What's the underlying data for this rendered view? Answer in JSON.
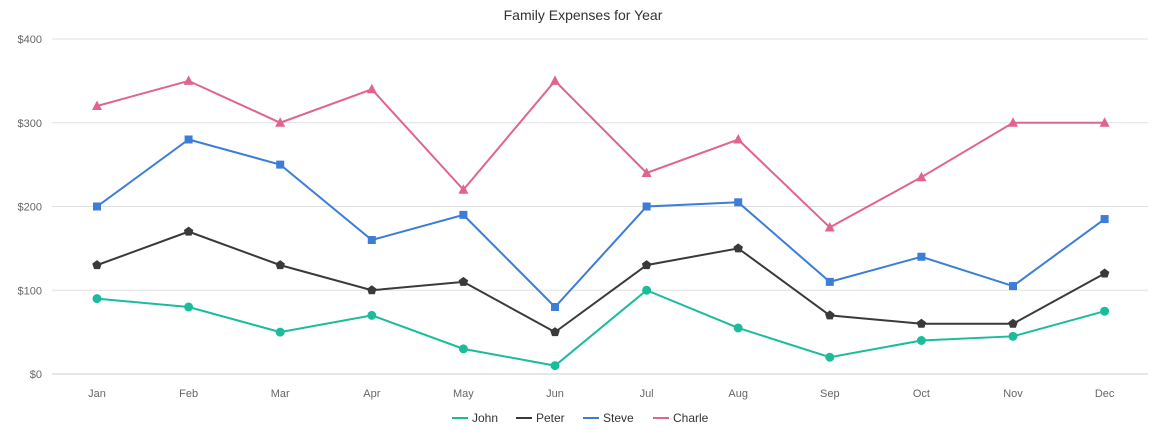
{
  "chart_data": {
    "type": "line",
    "title": "Family Expenses for Year",
    "xlabel": "",
    "ylabel": "",
    "categories": [
      "Jan",
      "Feb",
      "Mar",
      "Apr",
      "May",
      "Jun",
      "Jul",
      "Aug",
      "Sep",
      "Oct",
      "Nov",
      "Dec"
    ],
    "ylim": [
      0,
      400
    ],
    "yticks": [
      0,
      100,
      200,
      300,
      400
    ],
    "ytick_labels": [
      "$0",
      "$100",
      "$200",
      "$300",
      "$400"
    ],
    "grid": true,
    "legend_position": "bottom-center",
    "series": [
      {
        "name": "John",
        "color": "#1abc9c",
        "marker": "circle",
        "values": [
          90,
          80,
          50,
          70,
          30,
          10,
          100,
          55,
          20,
          40,
          45,
          75
        ]
      },
      {
        "name": "Peter",
        "color": "#3a3a3a",
        "marker": "pentagon",
        "values": [
          130,
          170,
          130,
          100,
          110,
          50,
          130,
          150,
          70,
          60,
          60,
          120
        ]
      },
      {
        "name": "Steve",
        "color": "#3b7dd8",
        "marker": "square",
        "values": [
          200,
          280,
          250,
          160,
          190,
          80,
          200,
          205,
          110,
          140,
          105,
          185
        ]
      },
      {
        "name": "Charle",
        "color": "#e0648c",
        "marker": "triangle",
        "values": [
          320,
          350,
          300,
          340,
          220,
          350,
          240,
          280,
          175,
          235,
          300,
          300
        ]
      }
    ]
  }
}
